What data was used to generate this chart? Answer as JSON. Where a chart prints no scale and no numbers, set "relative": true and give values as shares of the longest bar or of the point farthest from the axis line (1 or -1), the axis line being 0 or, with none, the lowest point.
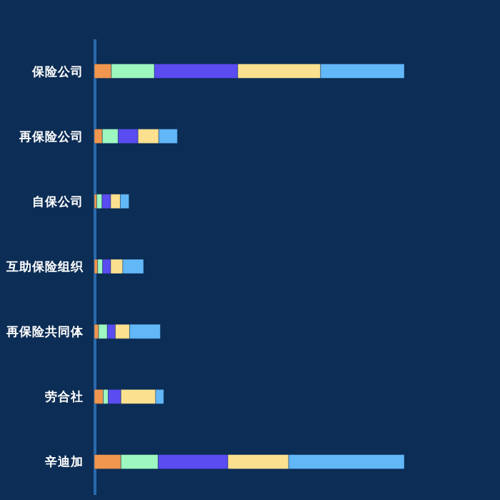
{
  "chart_data": {
    "type": "bar",
    "orientation": "horizontal",
    "stacked": true,
    "relative": true,
    "legend": false,
    "categories": [
      "保险公司",
      "再保险公司",
      "自保公司",
      "互助保险组织",
      "再保险共同体",
      "劳合社",
      "辛迪加"
    ],
    "series": [
      {
        "color": "#f0964f",
        "values": [
          0.055,
          0.026,
          0.008,
          0.011,
          0.014,
          0.029,
          0.086
        ]
      },
      {
        "color": "#9ef7bf",
        "values": [
          0.139,
          0.051,
          0.017,
          0.016,
          0.028,
          0.016,
          0.12
        ]
      },
      {
        "color": "#5a4cf0",
        "values": [
          0.269,
          0.064,
          0.028,
          0.026,
          0.026,
          0.041,
          0.225
        ]
      },
      {
        "color": "#fbe18f",
        "values": [
          0.267,
          0.067,
          0.031,
          0.039,
          0.046,
          0.112,
          0.196
        ]
      },
      {
        "color": "#62b7f7",
        "values": [
          0.27,
          0.06,
          0.028,
          0.067,
          0.099,
          0.026,
          0.373
        ]
      }
    ]
  }
}
